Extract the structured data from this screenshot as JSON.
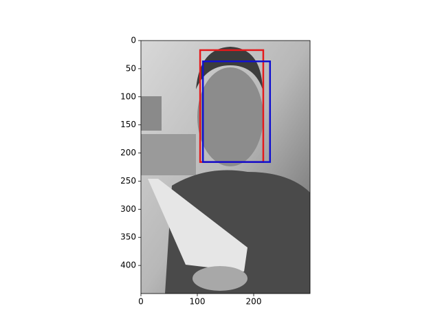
{
  "chart_data": {
    "type": "image",
    "xlim": [
      0,
      300
    ],
    "ylim": [
      450,
      0
    ],
    "xticks": [
      0,
      100,
      200
    ],
    "yticks": [
      0,
      50,
      100,
      150,
      200,
      250,
      300,
      350,
      400
    ],
    "boxes": [
      {
        "color": "#e41a1c",
        "x": [
          105,
          217
        ],
        "y": [
          17,
          216
        ]
      },
      {
        "color": "#1010d0",
        "x": [
          110,
          229
        ],
        "y": [
          37,
          216
        ]
      }
    ]
  }
}
